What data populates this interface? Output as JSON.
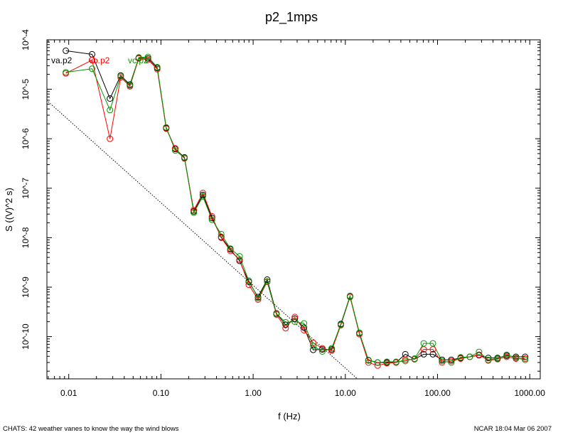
{
  "chart_data": {
    "type": "line",
    "title": "p2_1mps",
    "xlabel": "f (Hz)",
    "ylabel": "S ((V)^2 s)",
    "x_scale": "log",
    "y_scale": "log",
    "xlim": [
      0.0058,
      1300
    ],
    "ylim": [
      1.4e-11,
      0.0001
    ],
    "x_tick_values": [
      0.01,
      0.1,
      1,
      10,
      100,
      1000
    ],
    "x_tick_labels": [
      "0.01",
      "0.10",
      "1.00",
      "10.00",
      "100.00",
      "1000.00"
    ],
    "y_tick_values": [
      1e-10,
      1e-09,
      1e-08,
      1e-07,
      1e-06,
      1e-05,
      0.0001
    ],
    "y_tick_labels": [
      "10^-10",
      "10^-9",
      "10^-8",
      "10^-7",
      "10^-6",
      "10^-5",
      "10^-4"
    ],
    "grid": false,
    "x": [
      0.0093,
      0.0179,
      0.028,
      0.0366,
      0.0461,
      0.0575,
      0.0724,
      0.0912,
      0.114,
      0.143,
      0.18,
      0.227,
      0.285,
      0.358,
      0.451,
      0.567,
      0.713,
      0.898,
      1.13,
      1.42,
      1.79,
      2.25,
      2.83,
      3.56,
      4.48,
      5.64,
      7.1,
      8.94,
      11.25,
      14.2,
      17.8,
      22.4,
      28.2,
      35.5,
      44.7,
      56.3,
      70.8,
      89.1,
      112,
      141,
      178,
      224,
      282,
      355,
      447,
      562,
      708,
      891
    ],
    "series": [
      {
        "name": "va.p2",
        "color": "#000000",
        "values": [
          6e-05,
          5.1e-05,
          6.5e-06,
          1.9e-05,
          1.25e-05,
          4.3e-05,
          4.2e-05,
          2.7e-05,
          1.65e-06,
          6.2e-07,
          4.2e-07,
          3.4e-08,
          7.3e-08,
          2.5e-08,
          1.03e-08,
          5.8e-09,
          3.4e-09,
          1.28e-09,
          6.3e-10,
          1.42e-09,
          2.95e-10,
          1.73e-10,
          2.3e-10,
          1.53e-10,
          5.4e-11,
          5.5e-11,
          5.5e-11,
          1.8e-10,
          6.6e-10,
          1.18e-10,
          3.35e-11,
          3e-11,
          3e-11,
          3e-11,
          4.4e-11,
          3.5e-11,
          4.4e-11,
          4.4e-11,
          3.4e-11,
          3.4e-11,
          3.7e-11,
          3.9e-11,
          4.2e-11,
          3.7e-11,
          3.7e-11,
          4.1e-11,
          3.9e-11,
          3.9e-11
        ]
      },
      {
        "name": "vb.p2",
        "color": "#ff0000",
        "values": [
          2.1e-05,
          3.9e-05,
          1e-06,
          1.75e-05,
          1.15e-05,
          4.2e-05,
          3.95e-05,
          2.55e-05,
          1.6e-06,
          6.4e-07,
          4e-07,
          3.6e-08,
          8e-08,
          2.7e-08,
          1e-08,
          5.4e-09,
          3.6e-09,
          1.12e-09,
          5.6e-10,
          1.28e-09,
          2.8e-10,
          1.48e-10,
          2.5e-10,
          1.35e-10,
          7.5e-11,
          5.8e-11,
          5.2e-11,
          1.7e-10,
          6.3e-10,
          1.12e-10,
          3e-11,
          2.6e-11,
          2.9e-11,
          3e-11,
          3.4e-11,
          3.5e-11,
          5.5e-11,
          5.5e-11,
          3e-11,
          3.2e-11,
          3.6e-11,
          3.9e-11,
          4.3e-11,
          3.3e-11,
          3.5e-11,
          3.9e-11,
          3.6e-11,
          3.6e-11
        ]
      },
      {
        "name": "vc.p2",
        "color": "#009900",
        "values": [
          2.2e-05,
          2.6e-05,
          3.8e-06,
          1.85e-05,
          1.2e-05,
          4.4e-05,
          4.5e-05,
          2.8e-05,
          1.7e-06,
          5.8e-07,
          4.1e-07,
          3.2e-08,
          6.8e-08,
          2.3e-08,
          1.18e-08,
          6e-09,
          4.2e-09,
          1.35e-09,
          6e-10,
          1.3e-09,
          2.9e-10,
          1.95e-10,
          2e-10,
          1.85e-10,
          6.5e-11,
          5e-11,
          5.8e-11,
          1.75e-10,
          6.5e-10,
          1.2e-10,
          3.3e-11,
          3e-11,
          3.1e-11,
          3.1e-11,
          3.2e-11,
          3.6e-11,
          7.3e-11,
          7.3e-11,
          3.2e-11,
          3e-11,
          3.8e-11,
          3.9e-11,
          4.9e-11,
          3.4e-11,
          3.6e-11,
          4.3e-11,
          3.7e-11,
          3.4e-11
        ]
      }
    ],
    "reference_line": {
      "style": "dotted",
      "x": [
        0.006,
        13.5
      ],
      "y": [
        5.6e-06,
        1.4e-11
      ]
    }
  },
  "footer": {
    "left": "CHATS: 42 weather vanes to know the way the wind blows",
    "right": "NCAR 18:04 Mar 06 2007"
  }
}
